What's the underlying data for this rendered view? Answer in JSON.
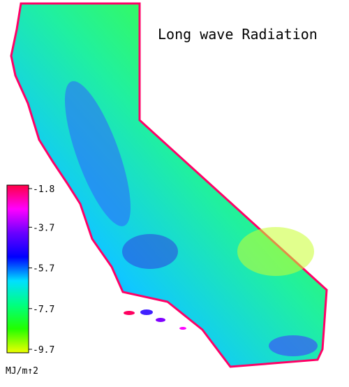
{
  "chart_data": {
    "type": "map",
    "title": "Long wave Radiation",
    "colorbar": {
      "ticks": [
        -1.8,
        -3.7,
        -5.7,
        -7.7,
        -9.7
      ],
      "unit": "MJ/m↑2",
      "colors": [
        "#ff0044",
        "#ff00ff",
        "#6a00ff",
        "#0000ff",
        "#00e0ff",
        "#00ff80",
        "#22ff00",
        "#eeff00"
      ]
    }
  }
}
